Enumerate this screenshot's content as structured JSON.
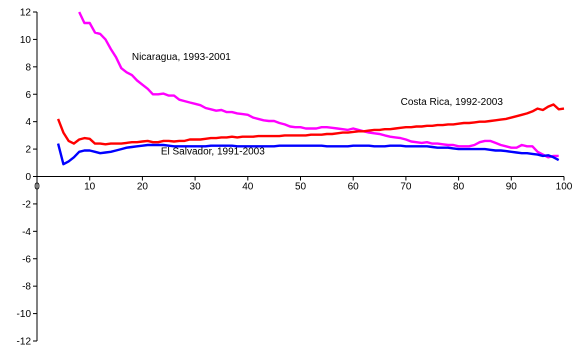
{
  "chart_data": {
    "type": "line",
    "title": "",
    "xlabel": "",
    "ylabel": "",
    "xlim": [
      0,
      100
    ],
    "ylim": [
      -12,
      12
    ],
    "x_ticks": [
      0,
      10,
      20,
      30,
      40,
      50,
      60,
      70,
      80,
      90,
      100
    ],
    "y_ticks": [
      12,
      10,
      8,
      6,
      4,
      2,
      0,
      -2,
      -4,
      -6,
      -8,
      -10,
      -12
    ],
    "grid": false,
    "legend": "none",
    "series": [
      {
        "name": "Nicaragua, 1993-2001",
        "color": "#ff00ff",
        "points": [
          [
            8,
            12.0
          ],
          [
            9,
            11.2
          ],
          [
            10,
            11.2
          ],
          [
            11,
            10.5
          ],
          [
            12,
            10.4
          ],
          [
            13,
            10.0
          ],
          [
            14,
            9.3
          ],
          [
            15,
            8.7
          ],
          [
            16,
            7.9
          ],
          [
            17,
            7.6
          ],
          [
            18,
            7.4
          ],
          [
            19,
            7.0
          ],
          [
            20,
            6.7
          ],
          [
            21,
            6.4
          ],
          [
            22,
            6.0
          ],
          [
            23,
            6.0
          ],
          [
            24,
            6.05
          ],
          [
            25,
            5.9
          ],
          [
            26,
            5.9
          ],
          [
            27,
            5.6
          ],
          [
            28,
            5.5
          ],
          [
            29,
            5.4
          ],
          [
            30,
            5.3
          ],
          [
            31,
            5.2
          ],
          [
            32,
            5.0
          ],
          [
            33,
            4.9
          ],
          [
            34,
            4.8
          ],
          [
            35,
            4.85
          ],
          [
            36,
            4.7
          ],
          [
            37,
            4.7
          ],
          [
            38,
            4.6
          ],
          [
            39,
            4.55
          ],
          [
            40,
            4.5
          ],
          [
            41,
            4.3
          ],
          [
            42,
            4.2
          ],
          [
            43,
            4.1
          ],
          [
            44,
            4.05
          ],
          [
            45,
            4.05
          ],
          [
            46,
            3.9
          ],
          [
            47,
            3.8
          ],
          [
            48,
            3.65
          ],
          [
            49,
            3.6
          ],
          [
            50,
            3.6
          ],
          [
            51,
            3.5
          ],
          [
            52,
            3.5
          ],
          [
            53,
            3.5
          ],
          [
            54,
            3.6
          ],
          [
            55,
            3.6
          ],
          [
            56,
            3.55
          ],
          [
            57,
            3.5
          ],
          [
            58,
            3.45
          ],
          [
            59,
            3.4
          ],
          [
            60,
            3.5
          ],
          [
            61,
            3.4
          ],
          [
            62,
            3.3
          ],
          [
            63,
            3.2
          ],
          [
            64,
            3.15
          ],
          [
            65,
            3.1
          ],
          [
            66,
            3.0
          ],
          [
            67,
            2.9
          ],
          [
            68,
            2.85
          ],
          [
            69,
            2.8
          ],
          [
            70,
            2.7
          ],
          [
            71,
            2.55
          ],
          [
            72,
            2.5
          ],
          [
            73,
            2.45
          ],
          [
            74,
            2.5
          ],
          [
            75,
            2.4
          ],
          [
            76,
            2.4
          ],
          [
            77,
            2.35
          ],
          [
            78,
            2.3
          ],
          [
            79,
            2.3
          ],
          [
            80,
            2.2
          ],
          [
            81,
            2.2
          ],
          [
            82,
            2.2
          ],
          [
            83,
            2.3
          ],
          [
            84,
            2.5
          ],
          [
            85,
            2.6
          ],
          [
            86,
            2.6
          ],
          [
            87,
            2.45
          ],
          [
            88,
            2.3
          ],
          [
            89,
            2.2
          ],
          [
            90,
            2.1
          ],
          [
            91,
            2.1
          ],
          [
            92,
            2.3
          ],
          [
            93,
            2.2
          ],
          [
            94,
            2.2
          ],
          [
            95,
            1.8
          ],
          [
            96,
            1.6
          ],
          [
            97,
            1.4
          ],
          [
            98,
            1.5
          ],
          [
            99,
            1.5
          ]
        ]
      },
      {
        "name": "Costa Rica, 1992-2003",
        "color": "#ff0000",
        "points": [
          [
            4,
            4.2
          ],
          [
            5,
            3.2
          ],
          [
            6,
            2.6
          ],
          [
            7,
            2.4
          ],
          [
            8,
            2.7
          ],
          [
            9,
            2.8
          ],
          [
            10,
            2.75
          ],
          [
            11,
            2.4
          ],
          [
            12,
            2.4
          ],
          [
            13,
            2.35
          ],
          [
            14,
            2.4
          ],
          [
            15,
            2.4
          ],
          [
            16,
            2.4
          ],
          [
            17,
            2.45
          ],
          [
            18,
            2.5
          ],
          [
            19,
            2.5
          ],
          [
            20,
            2.55
          ],
          [
            21,
            2.6
          ],
          [
            22,
            2.5
          ],
          [
            23,
            2.5
          ],
          [
            24,
            2.6
          ],
          [
            25,
            2.6
          ],
          [
            26,
            2.55
          ],
          [
            27,
            2.6
          ],
          [
            28,
            2.6
          ],
          [
            29,
            2.7
          ],
          [
            30,
            2.7
          ],
          [
            31,
            2.7
          ],
          [
            32,
            2.75
          ],
          [
            33,
            2.8
          ],
          [
            34,
            2.8
          ],
          [
            35,
            2.85
          ],
          [
            36,
            2.85
          ],
          [
            37,
            2.9
          ],
          [
            38,
            2.85
          ],
          [
            39,
            2.9
          ],
          [
            40,
            2.9
          ],
          [
            41,
            2.9
          ],
          [
            42,
            2.95
          ],
          [
            43,
            2.95
          ],
          [
            44,
            2.95
          ],
          [
            45,
            2.95
          ],
          [
            46,
            2.95
          ],
          [
            47,
            3.0
          ],
          [
            48,
            3.0
          ],
          [
            49,
            3.0
          ],
          [
            50,
            3.0
          ],
          [
            51,
            3.0
          ],
          [
            52,
            3.05
          ],
          [
            53,
            3.05
          ],
          [
            54,
            3.05
          ],
          [
            55,
            3.1
          ],
          [
            56,
            3.1
          ],
          [
            57,
            3.15
          ],
          [
            58,
            3.2
          ],
          [
            59,
            3.2
          ],
          [
            60,
            3.25
          ],
          [
            61,
            3.3
          ],
          [
            62,
            3.3
          ],
          [
            63,
            3.35
          ],
          [
            64,
            3.4
          ],
          [
            65,
            3.4
          ],
          [
            66,
            3.45
          ],
          [
            67,
            3.45
          ],
          [
            68,
            3.5
          ],
          [
            69,
            3.55
          ],
          [
            70,
            3.6
          ],
          [
            71,
            3.6
          ],
          [
            72,
            3.65
          ],
          [
            73,
            3.65
          ],
          [
            74,
            3.7
          ],
          [
            75,
            3.7
          ],
          [
            76,
            3.75
          ],
          [
            77,
            3.75
          ],
          [
            78,
            3.8
          ],
          [
            79,
            3.8
          ],
          [
            80,
            3.85
          ],
          [
            81,
            3.9
          ],
          [
            82,
            3.9
          ],
          [
            83,
            3.95
          ],
          [
            84,
            4.0
          ],
          [
            85,
            4.0
          ],
          [
            86,
            4.05
          ],
          [
            87,
            4.1
          ],
          [
            88,
            4.15
          ],
          [
            89,
            4.2
          ],
          [
            90,
            4.3
          ],
          [
            91,
            4.4
          ],
          [
            92,
            4.5
          ],
          [
            93,
            4.6
          ],
          [
            94,
            4.75
          ],
          [
            95,
            4.95
          ],
          [
            96,
            4.85
          ],
          [
            97,
            5.1
          ],
          [
            98,
            5.25
          ],
          [
            99,
            4.9
          ],
          [
            100,
            4.95
          ]
        ]
      },
      {
        "name": "El Salvador, 1991-2003",
        "color": "#0000ff",
        "points": [
          [
            4,
            2.4
          ],
          [
            5,
            0.9
          ],
          [
            6,
            1.1
          ],
          [
            7,
            1.4
          ],
          [
            8,
            1.8
          ],
          [
            9,
            1.9
          ],
          [
            10,
            1.9
          ],
          [
            11,
            1.8
          ],
          [
            12,
            1.7
          ],
          [
            13,
            1.75
          ],
          [
            14,
            1.8
          ],
          [
            15,
            1.9
          ],
          [
            16,
            2.0
          ],
          [
            17,
            2.1
          ],
          [
            18,
            2.15
          ],
          [
            19,
            2.2
          ],
          [
            20,
            2.25
          ],
          [
            21,
            2.3
          ],
          [
            22,
            2.3
          ],
          [
            23,
            2.3
          ],
          [
            24,
            2.3
          ],
          [
            25,
            2.25
          ],
          [
            26,
            2.2
          ],
          [
            27,
            2.2
          ],
          [
            28,
            2.2
          ],
          [
            29,
            2.2
          ],
          [
            30,
            2.2
          ],
          [
            31,
            2.2
          ],
          [
            32,
            2.2
          ],
          [
            33,
            2.25
          ],
          [
            34,
            2.25
          ],
          [
            35,
            2.25
          ],
          [
            36,
            2.25
          ],
          [
            37,
            2.25
          ],
          [
            38,
            2.2
          ],
          [
            39,
            2.2
          ],
          [
            40,
            2.2
          ],
          [
            41,
            2.2
          ],
          [
            42,
            2.2
          ],
          [
            43,
            2.2
          ],
          [
            44,
            2.2
          ],
          [
            45,
            2.2
          ],
          [
            46,
            2.25
          ],
          [
            47,
            2.25
          ],
          [
            48,
            2.25
          ],
          [
            49,
            2.25
          ],
          [
            50,
            2.25
          ],
          [
            51,
            2.25
          ],
          [
            52,
            2.25
          ],
          [
            53,
            2.25
          ],
          [
            54,
            2.25
          ],
          [
            55,
            2.2
          ],
          [
            56,
            2.2
          ],
          [
            57,
            2.2
          ],
          [
            58,
            2.2
          ],
          [
            59,
            2.2
          ],
          [
            60,
            2.25
          ],
          [
            61,
            2.25
          ],
          [
            62,
            2.25
          ],
          [
            63,
            2.25
          ],
          [
            64,
            2.2
          ],
          [
            65,
            2.2
          ],
          [
            66,
            2.2
          ],
          [
            67,
            2.25
          ],
          [
            68,
            2.25
          ],
          [
            69,
            2.25
          ],
          [
            70,
            2.2
          ],
          [
            71,
            2.2
          ],
          [
            72,
            2.2
          ],
          [
            73,
            2.2
          ],
          [
            74,
            2.2
          ],
          [
            75,
            2.15
          ],
          [
            76,
            2.1
          ],
          [
            77,
            2.1
          ],
          [
            78,
            2.1
          ],
          [
            79,
            2.05
          ],
          [
            80,
            2.0
          ],
          [
            81,
            2.0
          ],
          [
            82,
            2.0
          ],
          [
            83,
            2.0
          ],
          [
            84,
            2.0
          ],
          [
            85,
            2.0
          ],
          [
            86,
            1.95
          ],
          [
            87,
            1.9
          ],
          [
            88,
            1.9
          ],
          [
            89,
            1.85
          ],
          [
            90,
            1.8
          ],
          [
            91,
            1.75
          ],
          [
            92,
            1.7
          ],
          [
            93,
            1.7
          ],
          [
            94,
            1.65
          ],
          [
            95,
            1.6
          ],
          [
            96,
            1.5
          ],
          [
            97,
            1.55
          ],
          [
            98,
            1.4
          ],
          [
            99,
            1.2
          ]
        ]
      }
    ],
    "annotations": [
      {
        "text": "Nicaragua, 1993-2001",
        "x": 18,
        "y": 8.5
      },
      {
        "text": "Costa Rica, 1992-2003",
        "x": 69,
        "y": 5.2
      },
      {
        "text": "El Salvador, 1991-2003",
        "x": 23.5,
        "y": 1.6
      }
    ]
  }
}
